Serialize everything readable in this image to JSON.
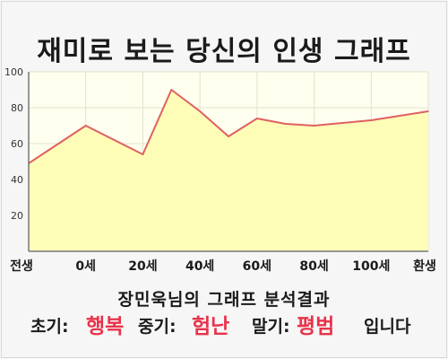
{
  "title": "재미로 보는 당신의 인생 그래프",
  "chart_data": {
    "type": "area",
    "title": "재미로 보는 당신의 인생 그래프",
    "x_ticks": [
      "전생",
      "0세",
      "20세",
      "40세",
      "60세",
      "80세",
      "100세",
      "환생"
    ],
    "y_ticks": [
      "20",
      "40",
      "60",
      "80",
      "100"
    ],
    "ylim": [
      0,
      100
    ],
    "points": [
      {
        "x": 0,
        "y": 49
      },
      {
        "x": 1,
        "y": 70
      },
      {
        "x": 2,
        "y": 54
      },
      {
        "x": 2.5,
        "y": 90
      },
      {
        "x": 3,
        "y": 78
      },
      {
        "x": 3.5,
        "y": 64
      },
      {
        "x": 4,
        "y": 74
      },
      {
        "x": 4.5,
        "y": 71
      },
      {
        "x": 5,
        "y": 70
      },
      {
        "x": 6,
        "y": 73
      },
      {
        "x": 7,
        "y": 78
      }
    ],
    "grid": true,
    "fill_color": "#fdfdb8",
    "line_color": "#e06060",
    "background_color": "#fffff0"
  },
  "result": {
    "heading": "장민욱님의 그래프 분석결과",
    "early_label": "초기:",
    "early_value": "행복",
    "middle_label": "중기:",
    "middle_value": "험난",
    "late_label": "말기:",
    "late_value": "평범",
    "ending": "입니다"
  }
}
